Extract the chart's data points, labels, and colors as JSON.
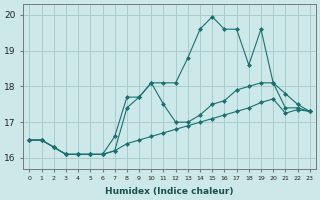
{
  "xlabel": "Humidex (Indice chaleur)",
  "bg_color": "#cce8e8",
  "grid_color": "#aacccc",
  "line_color": "#1a7070",
  "xlim": [
    -0.5,
    23.5
  ],
  "ylim": [
    15.7,
    20.3
  ],
  "xticks": [
    0,
    1,
    2,
    3,
    4,
    5,
    6,
    7,
    8,
    9,
    10,
    11,
    12,
    13,
    14,
    15,
    16,
    17,
    18,
    19,
    20,
    21,
    22,
    23
  ],
  "yticks": [
    16,
    17,
    18,
    19,
    20
  ],
  "line1_x": [
    0,
    1,
    2,
    3,
    4,
    5,
    6,
    7,
    8,
    9,
    10,
    11,
    12,
    13,
    14,
    15,
    16,
    17,
    18,
    19,
    20,
    21,
    22,
    23
  ],
  "line1_y": [
    16.5,
    16.5,
    16.3,
    16.1,
    16.1,
    16.1,
    16.1,
    16.2,
    17.4,
    17.7,
    18.1,
    18.1,
    18.1,
    18.8,
    19.6,
    19.95,
    19.6,
    19.6,
    18.6,
    19.6,
    18.1,
    17.8,
    17.5,
    17.3
  ],
  "line2_x": [
    0,
    1,
    2,
    3,
    4,
    5,
    6,
    7,
    8,
    9,
    10,
    11,
    12,
    13,
    14,
    15,
    16,
    17,
    18,
    19,
    20,
    21,
    22,
    23
  ],
  "line2_y": [
    16.5,
    16.5,
    16.3,
    16.1,
    16.1,
    16.1,
    16.1,
    16.6,
    17.7,
    17.7,
    18.1,
    17.5,
    17.0,
    17.0,
    17.2,
    17.5,
    17.6,
    17.9,
    18.0,
    18.1,
    18.1,
    17.4,
    17.4,
    17.3
  ],
  "line3_x": [
    0,
    1,
    2,
    3,
    4,
    5,
    6,
    7,
    8,
    9,
    10,
    11,
    12,
    13,
    14,
    15,
    16,
    17,
    18,
    19,
    20,
    21,
    22,
    23
  ],
  "line3_y": [
    16.5,
    16.5,
    16.3,
    16.1,
    16.1,
    16.1,
    16.1,
    16.2,
    16.4,
    16.5,
    16.6,
    16.7,
    16.8,
    16.9,
    17.0,
    17.1,
    17.2,
    17.3,
    17.4,
    17.55,
    17.65,
    17.25,
    17.35,
    17.3
  ]
}
